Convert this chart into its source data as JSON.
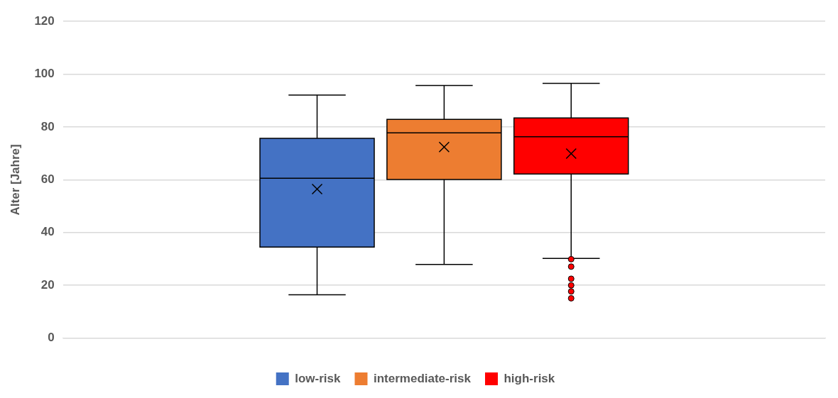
{
  "chart_data": {
    "type": "box",
    "ylabel": "Alter [Jahre]",
    "categories": [
      null
    ],
    "ylim": [
      0,
      120
    ],
    "yticks": [
      0,
      20,
      40,
      60,
      80,
      100,
      120
    ],
    "grid": "y",
    "legend": "bottom",
    "series": [
      {
        "name": "low-risk",
        "color": "#4472c4",
        "boxes": [
          {
            "low": 16.4,
            "q1": 34.5,
            "median": 60.6,
            "q3": 75.7,
            "high": 92.1,
            "mean": 56.5
          }
        ]
      },
      {
        "name": "intermediate-risk",
        "color": "#ed7d31",
        "boxes": [
          {
            "low": 27.9,
            "q1": 60.1,
            "median": 77.8,
            "q3": 82.9,
            "high": 95.7,
            "mean": 72.4
          }
        ]
      },
      {
        "name": "high-risk",
        "color": "#ff0000",
        "boxes": [
          {
            "low": 30.2,
            "q1": 62.2,
            "median": 76.3,
            "q3": 83.4,
            "high": 96.5,
            "mean": 69.9,
            "outliers": [
              29.9,
              27.1,
              22.5,
              20.0,
              17.7,
              15.1
            ]
          }
        ]
      }
    ]
  }
}
